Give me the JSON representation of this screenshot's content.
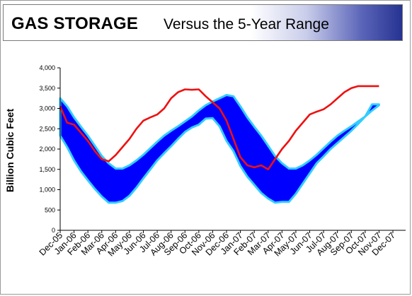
{
  "header": {
    "title_main": "GAS STORAGE",
    "title_sub": "Versus the 5-Year Range"
  },
  "colors": {
    "range_band": "#0000ff",
    "range_edge": "#33ccff",
    "storage_line": "#ee1111",
    "axis": "#000000"
  },
  "chart_data": {
    "type": "area",
    "title": "GAS STORAGE Versus the 5-Year Range",
    "ylabel": "Billion Cubic Feet",
    "xlabel": "",
    "ylim": [
      0,
      4000
    ],
    "yticks": [
      "0",
      "500",
      "1,000",
      "1,500",
      "2,000",
      "2,500",
      "3,000",
      "3,500",
      "4,000"
    ],
    "ytick_values": [
      0,
      500,
      1000,
      1500,
      2000,
      2500,
      3000,
      3500,
      4000
    ],
    "x_labels": [
      "Dec-05",
      "Jan-06",
      "Feb-06",
      "Mar-06",
      "Apr-06",
      "May-06",
      "Jun-06",
      "Jul-06",
      "Aug-06",
      "Sep-06",
      "Oct-06",
      "Nov-06",
      "Dec-06",
      "Jan-07",
      "Feb-07",
      "Mar-07",
      "Apr-07",
      "May-07",
      "Jun-07",
      "Jul-07",
      "Aug-07",
      "Sep-07",
      "Oct-07",
      "Nov-07",
      "Dec-07"
    ],
    "x_months": [
      0,
      0.5,
      1,
      1.5,
      2,
      2.5,
      3,
      3.5,
      4,
      4.5,
      5,
      5.5,
      6,
      6.5,
      7,
      7.5,
      8,
      8.5,
      9,
      9.5,
      10,
      10.5,
      11,
      11.5,
      12,
      12.5,
      13,
      13.5,
      14,
      14.5,
      15,
      15.5,
      16,
      16.5,
      17,
      17.5,
      18,
      18.5,
      19,
      19.5,
      20,
      20.5,
      21,
      21.5,
      22,
      22.5,
      23
    ],
    "grid": false,
    "legend": "none",
    "series": [
      {
        "role": "range_max",
        "values": [
          3250,
          3050,
          2780,
          2550,
          2330,
          2080,
          1830,
          1650,
          1520,
          1520,
          1600,
          1720,
          1860,
          2020,
          2180,
          2330,
          2450,
          2560,
          2680,
          2800,
          2950,
          3080,
          3170,
          3250,
          3330,
          3300,
          3050,
          2780,
          2550,
          2330,
          2080,
          1830,
          1650,
          1520,
          1520,
          1600,
          1720,
          1860,
          2020,
          2180,
          2330,
          2450,
          2560,
          2680,
          2800,
          2950,
          3080
        ]
      },
      {
        "role": "range_min",
        "values": [
          2330,
          2050,
          1720,
          1450,
          1230,
          1020,
          830,
          680,
          680,
          720,
          850,
          1050,
          1280,
          1500,
          1720,
          1900,
          2070,
          2250,
          2420,
          2530,
          2600,
          2750,
          2760,
          2560,
          2200,
          1950,
          1580,
          1320,
          1120,
          920,
          780,
          680,
          700,
          700,
          900,
          1150,
          1400,
          1650,
          1820,
          2000,
          2150,
          2300,
          2450,
          2620,
          2800,
          3100,
          3100
        ]
      },
      {
        "role": "storage",
        "values": [
          3050,
          2650,
          2600,
          2400,
          2200,
          1950,
          1750,
          1700,
          1850,
          2050,
          2250,
          2500,
          2700,
          2780,
          2850,
          3000,
          3250,
          3400,
          3470,
          3460,
          3470,
          3300,
          3150,
          3000,
          2700,
          2250,
          1800,
          1600,
          1550,
          1600,
          1500,
          1750,
          2000,
          2200,
          2450,
          2650,
          2850,
          2920,
          2980,
          3100,
          3250,
          3400,
          3500,
          3550,
          3550,
          3550,
          3550
        ]
      }
    ]
  }
}
